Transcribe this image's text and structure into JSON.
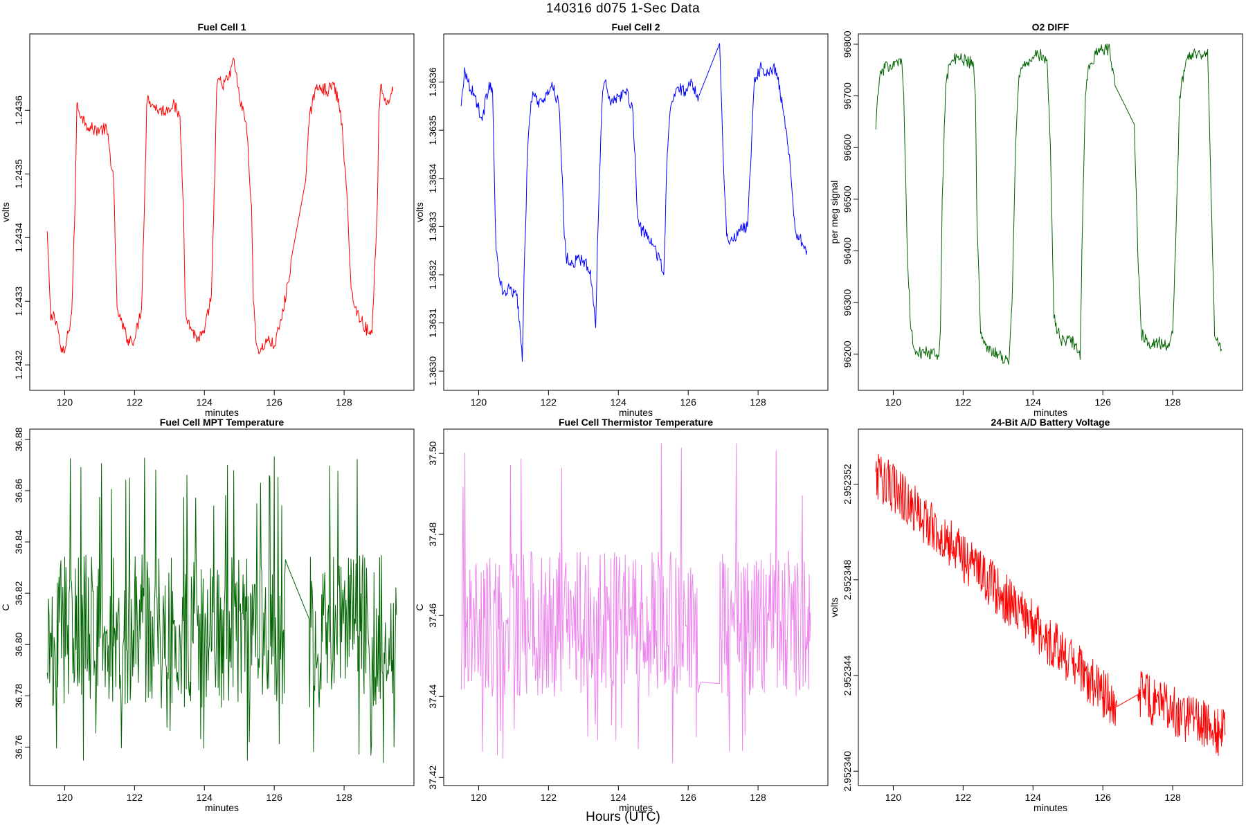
{
  "figure": {
    "title": "140316   d075   1-Sec Data",
    "xlabel": "Hours (UTC)"
  },
  "chart_data": [
    {
      "type": "line",
      "title": "Fuel Cell 1",
      "xlabel": "minutes",
      "ylabel": "volts",
      "color": "#ff0000",
      "xlim": [
        119.0,
        130.0
      ],
      "ylim": [
        1.24316,
        1.24372
      ],
      "xticks": [
        120,
        122,
        124,
        126,
        128
      ],
      "xtick_labels": [
        "120",
        "122",
        "124",
        "126",
        "128"
      ],
      "yticks": [
        1.2432,
        1.2433,
        1.2434,
        1.2435,
        1.2436
      ],
      "ytick_labels": [
        "1.2432",
        "1.2433",
        "1.2434",
        "1.2435",
        "1.2436"
      ],
      "x": [
        119.5,
        119.6,
        119.7,
        119.8,
        119.9,
        120.0,
        120.1,
        120.2,
        120.3,
        120.35,
        120.4,
        120.5,
        120.6,
        120.8,
        121.0,
        121.2,
        121.4,
        121.45,
        121.5,
        121.6,
        121.8,
        122.0,
        122.2,
        122.3,
        122.35,
        122.4,
        122.5,
        122.7,
        122.9,
        123.1,
        123.3,
        123.4,
        123.45,
        123.5,
        123.6,
        123.8,
        124.0,
        124.2,
        124.3,
        124.35,
        124.4,
        124.5,
        124.7,
        124.85,
        125.0,
        125.2,
        125.35,
        125.4,
        125.5,
        125.6,
        125.8,
        126.0,
        126.2,
        126.4,
        126.5,
        126.9,
        127.0,
        127.1,
        127.3,
        127.5,
        127.7,
        127.9,
        128.1,
        128.2,
        128.3,
        128.5,
        128.7,
        128.8,
        128.95,
        129.0,
        129.05,
        129.2,
        129.4
      ],
      "y": [
        1.24341,
        1.24327,
        1.24328,
        1.24326,
        1.24322,
        1.24322,
        1.24325,
        1.24328,
        1.24346,
        1.24361,
        1.2436,
        1.24359,
        1.24358,
        1.24357,
        1.24357,
        1.24357,
        1.24349,
        1.24338,
        1.24329,
        1.24327,
        1.24324,
        1.24324,
        1.24329,
        1.24349,
        1.24361,
        1.24362,
        1.24361,
        1.2436,
        1.2436,
        1.24361,
        1.24359,
        1.24345,
        1.2433,
        1.24327,
        1.24326,
        1.24324,
        1.24325,
        1.24331,
        1.2435,
        1.24363,
        1.24365,
        1.24364,
        1.24365,
        1.24368,
        1.24362,
        1.24358,
        1.24345,
        1.2433,
        1.24323,
        1.24322,
        1.24324,
        1.24323,
        1.24327,
        1.24333,
        1.24337,
        1.24349,
        1.24358,
        1.24362,
        1.24364,
        1.24363,
        1.24364,
        1.2436,
        1.24345,
        1.24332,
        1.24329,
        1.24327,
        1.24325,
        1.24325,
        1.24345,
        1.2436,
        1.24364,
        1.24361,
        1.24363
      ]
    },
    {
      "type": "line",
      "title": "Fuel Cell 2",
      "xlabel": "minutes",
      "ylabel": "volts",
      "color": "#0000ff",
      "xlim": [
        119.0,
        130.0
      ],
      "ylim": [
        1.36296,
        1.3637
      ],
      "xticks": [
        120,
        122,
        124,
        126,
        128
      ],
      "xtick_labels": [
        "120",
        "122",
        "124",
        "126",
        "128"
      ],
      "yticks": [
        1.363,
        1.3631,
        1.3632,
        1.3633,
        1.3634,
        1.3635,
        1.3636
      ],
      "ytick_labels": [
        "1.3630",
        "1.3631",
        "1.3632",
        "1.3633",
        "1.3634",
        "1.3635",
        "1.3636"
      ],
      "x": [
        119.5,
        119.6,
        119.7,
        119.9,
        120.1,
        120.3,
        120.4,
        120.45,
        120.5,
        120.6,
        120.7,
        120.9,
        121.1,
        121.25,
        121.3,
        121.4,
        121.5,
        121.55,
        121.6,
        121.7,
        121.9,
        122.1,
        122.3,
        122.4,
        122.45,
        122.5,
        122.6,
        122.8,
        123.0,
        123.2,
        123.35,
        123.4,
        123.5,
        123.55,
        123.6,
        123.8,
        124.0,
        124.2,
        124.4,
        124.5,
        124.55,
        124.6,
        124.8,
        125.0,
        125.2,
        125.3,
        125.4,
        125.5,
        125.7,
        125.9,
        126.1,
        126.3,
        126.9,
        127.0,
        127.1,
        127.3,
        127.5,
        127.7,
        127.9,
        128.1,
        128.3,
        128.5,
        128.7,
        128.9,
        129.0,
        129.1,
        129.2,
        129.3,
        129.4
      ],
      "y": [
        1.36355,
        1.36363,
        1.3636,
        1.36357,
        1.36352,
        1.3636,
        1.36358,
        1.3634,
        1.36325,
        1.36319,
        1.36316,
        1.36317,
        1.36316,
        1.36302,
        1.3632,
        1.36345,
        1.36356,
        1.36358,
        1.36357,
        1.36356,
        1.36356,
        1.3636,
        1.36355,
        1.3634,
        1.36328,
        1.36324,
        1.36322,
        1.36323,
        1.36323,
        1.36321,
        1.36309,
        1.36326,
        1.36349,
        1.36358,
        1.3636,
        1.36356,
        1.36357,
        1.36358,
        1.36355,
        1.36341,
        1.36332,
        1.3633,
        1.36328,
        1.36326,
        1.36323,
        1.3632,
        1.36345,
        1.36355,
        1.36359,
        1.36358,
        1.3636,
        1.36357,
        1.36368,
        1.36345,
        1.36328,
        1.36327,
        1.3633,
        1.3633,
        1.36361,
        1.36363,
        1.36362,
        1.36363,
        1.36355,
        1.36345,
        1.36335,
        1.36328,
        1.36328,
        1.36326,
        1.36325
      ]
    },
    {
      "type": "line",
      "title": "O2 DIFF",
      "xlabel": "minutes",
      "ylabel": "per meg signal",
      "color": "#006400",
      "xlim": [
        119.0,
        130.0
      ],
      "ylim": [
        96130,
        96820
      ],
      "xticks": [
        120,
        122,
        124,
        126,
        128
      ],
      "xtick_labels": [
        "120",
        "122",
        "124",
        "126",
        "128"
      ],
      "yticks": [
        96200,
        96300,
        96400,
        96500,
        96600,
        96700,
        96800
      ],
      "ytick_labels": [
        "96200",
        "96300",
        "96400",
        "96500",
        "96600",
        "96700",
        "96800"
      ],
      "x": [
        119.5,
        119.55,
        119.6,
        119.7,
        119.9,
        120.1,
        120.25,
        120.3,
        120.4,
        120.5,
        120.6,
        120.7,
        120.9,
        121.1,
        121.3,
        121.35,
        121.4,
        121.5,
        121.6,
        121.7,
        121.9,
        122.1,
        122.3,
        122.35,
        122.4,
        122.5,
        122.6,
        122.8,
        123.0,
        123.2,
        123.3,
        123.4,
        123.5,
        123.6,
        123.8,
        124.0,
        124.2,
        124.4,
        124.5,
        124.6,
        124.8,
        125.0,
        125.2,
        125.35,
        125.4,
        125.5,
        125.6,
        125.8,
        126.0,
        126.2,
        126.35,
        126.9,
        127.0,
        127.1,
        127.3,
        127.5,
        127.7,
        127.9,
        128.0,
        128.1,
        128.2,
        128.4,
        128.6,
        128.8,
        129.0,
        129.2,
        129.3,
        129.4
      ],
      "y": [
        96635,
        96700,
        96730,
        96750,
        96760,
        96770,
        96760,
        96700,
        96400,
        96250,
        96210,
        96200,
        96205,
        96200,
        96195,
        96250,
        96500,
        96720,
        96760,
        96770,
        96772,
        96770,
        96760,
        96700,
        96450,
        96240,
        96220,
        96210,
        96200,
        96190,
        96180,
        96300,
        96600,
        96740,
        96765,
        96775,
        96780,
        96770,
        96600,
        96270,
        96225,
        96230,
        96220,
        96190,
        96400,
        96700,
        96760,
        96780,
        96790,
        96790,
        96720,
        96645,
        96400,
        96240,
        96220,
        96225,
        96220,
        96215,
        96240,
        96450,
        96700,
        96770,
        96785,
        96780,
        96790,
        96235,
        96220,
        96210
      ]
    },
    {
      "type": "line",
      "title": "Fuel Cell MPT Temperature",
      "xlabel": "minutes",
      "ylabel": "C",
      "color": "#006400",
      "xlim": [
        119.0,
        130.0
      ],
      "ylim": [
        36.745,
        36.884
      ],
      "xticks": [
        120,
        122,
        124,
        126,
        128
      ],
      "xtick_labels": [
        "120",
        "122",
        "124",
        "126",
        "128"
      ],
      "yticks": [
        36.76,
        36.78,
        36.8,
        36.82,
        36.84,
        36.86,
        36.88
      ],
      "ytick_labels": [
        "36.76",
        "36.78",
        "36.80",
        "36.82",
        "36.84",
        "36.86",
        "36.88"
      ],
      "segments": [
        [
          119.5,
          126.4
        ],
        [
          126.4,
          127.0
        ],
        [
          127.0,
          129.5
        ]
      ],
      "noise": {
        "center": 36.805,
        "amplitude": 0.03,
        "spikes_up": 36.875,
        "spikes_down": 36.752
      }
    },
    {
      "type": "line",
      "title": "Fuel Cell Thermistor Temperature",
      "xlabel": "minutes",
      "ylabel": "C",
      "color": "#ee82ee",
      "xlim": [
        119.0,
        130.0
      ],
      "ylim": [
        37.418,
        37.506
      ],
      "xticks": [
        120,
        122,
        124,
        126,
        128
      ],
      "xtick_labels": [
        "120",
        "122",
        "124",
        "126",
        "128"
      ],
      "yticks": [
        37.42,
        37.44,
        37.46,
        37.48,
        37.5
      ],
      "ytick_labels": [
        "37.42",
        "37.44",
        "37.46",
        "37.48",
        "37.50"
      ],
      "noise": {
        "center": 37.458,
        "amplitude": 0.018,
        "spikes_up": 37.503,
        "spikes_down": 37.423
      }
    },
    {
      "type": "line",
      "title": "24-Bit A/D Battery Voltage",
      "xlabel": "minutes",
      "ylabel": "volts",
      "color": "#ff0000",
      "xlim": [
        119.0,
        130.0
      ],
      "ylim": [
        2.9523394,
        2.9523543
      ],
      "xticks": [
        120,
        122,
        124,
        126,
        128
      ],
      "xtick_labels": [
        "120",
        "122",
        "124",
        "126",
        "128"
      ],
      "yticks": [
        2.95234,
        2.952344,
        2.952348,
        2.952352
      ],
      "ytick_labels": [
        "2.952340",
        "2.952344",
        "2.952348",
        "2.952352"
      ],
      "trend": {
        "x": [
          119.5,
          126.4,
          127.0,
          129.5
        ],
        "y": [
          2.9523525,
          2.9523427,
          2.9523432,
          2.9523415
        ]
      }
    }
  ]
}
